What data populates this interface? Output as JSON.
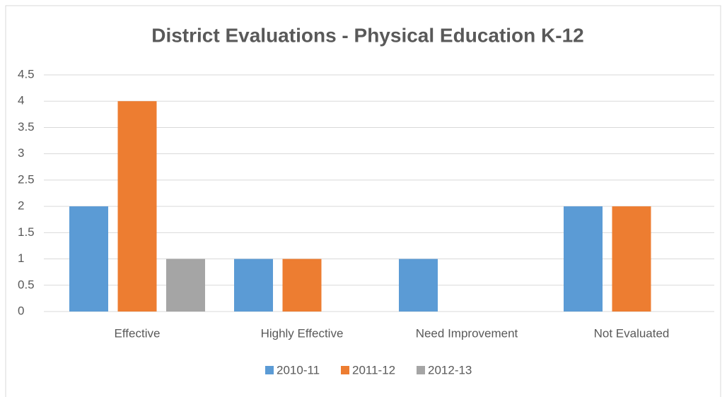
{
  "chart_data": {
    "type": "bar",
    "title": "District Evaluations - Physical Education K-12",
    "categories": [
      "Effective",
      "Highly Effective",
      "Need Improvement",
      "Not Evaluated"
    ],
    "series": [
      {
        "name": "2010-11",
        "color": "#5b9bd5",
        "values": [
          2,
          1,
          1,
          2
        ]
      },
      {
        "name": "2011-12",
        "color": "#ed7d31",
        "values": [
          4,
          1,
          0,
          2
        ]
      },
      {
        "name": "2012-13",
        "color": "#a5a5a5",
        "values": [
          1,
          0,
          0,
          0
        ]
      }
    ],
    "ylim": [
      0,
      4.5
    ],
    "yticks": [
      0,
      0.5,
      1,
      1.5,
      2,
      2.5,
      3,
      3.5,
      4,
      4.5
    ],
    "grid": true,
    "legend": "bottom"
  }
}
